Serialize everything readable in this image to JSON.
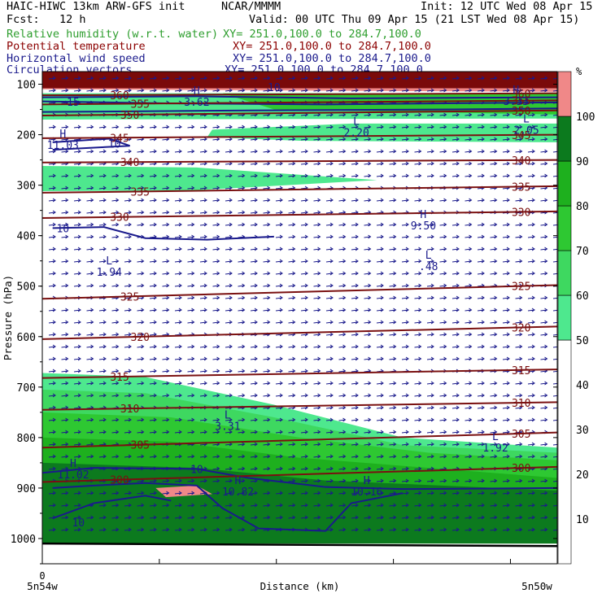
{
  "header": {
    "model": "HAIC-HIWC 13km ARW-GFS init",
    "org": "NCAR/MMMM",
    "init": "Init: 12 UTC Wed 08 Apr 15",
    "fcst": "Fcst:   12 h",
    "valid": "Valid: 00 UTC Thu 09 Apr 15 (21 LST Wed 08 Apr 15)",
    "fields": [
      {
        "name": "Relative humidity (w.r.t. water)",
        "xy": "XY= 251.0,100.0 to 284.7,100.0",
        "color": "#2e9e2e"
      },
      {
        "name": "Potential temperature",
        "xy": "XY= 251.0,100.0 to 284.7,100.0",
        "color": "#8b0000"
      },
      {
        "name": "Horizontal wind speed",
        "xy": "XY= 251.0,100.0 to 284.7,100.0",
        "color": "#1a1a8c"
      },
      {
        "name": "Circulation vectors",
        "xy": "XY= 251.0,100.0 to 284.7,100.0",
        "color": "#1a1a8c"
      }
    ]
  },
  "chart_data": {
    "type": "heatmap",
    "title": "",
    "xlabel": "Distance (km)",
    "ylabel": "Pressure (hPa)",
    "x_start_label": "5n54w",
    "x_end_label": "5n50w",
    "x_zero_label": "0",
    "y_ticks": [
      100,
      200,
      300,
      400,
      500,
      600,
      700,
      800,
      900,
      1000
    ],
    "ylim": [
      1050,
      75
    ],
    "colorbar": {
      "unit": "%",
      "ticks": [
        10,
        20,
        30,
        40,
        50,
        60,
        70,
        80,
        90,
        100
      ],
      "levels": [
        {
          "from": 0,
          "to": 50,
          "color": "#ffffff"
        },
        {
          "from": 50,
          "to": 60,
          "color": "#4ee88e"
        },
        {
          "from": 60,
          "to": 70,
          "color": "#3ed860"
        },
        {
          "from": 70,
          "to": 80,
          "color": "#2ec832"
        },
        {
          "from": 80,
          "to": 90,
          "color": "#1eb01e"
        },
        {
          "from": 90,
          "to": 100,
          "color": "#0c7a1e"
        },
        {
          "from": 100,
          "to": 110,
          "color": "#f08888"
        }
      ]
    },
    "theta_contours": [
      {
        "label": "345",
        "p_left": 207,
        "p_right": 200
      },
      {
        "label": "340",
        "p_left": 255,
        "p_right": 250
      },
      {
        "label": "335",
        "p_left": 315,
        "p_right": 302
      },
      {
        "label": "330",
        "p_left": 365,
        "p_right": 352
      },
      {
        "label": "325",
        "p_left": 525,
        "p_right": 498
      },
      {
        "label": "320",
        "p_left": 605,
        "p_right": 580
      },
      {
        "label": "315",
        "p_left": 682,
        "p_right": 665
      },
      {
        "label": "310",
        "p_left": 745,
        "p_right": 730
      },
      {
        "label": "305",
        "p_left": 820,
        "p_right": 790
      },
      {
        "label": "300",
        "p_left": 888,
        "p_right": 858
      },
      {
        "label": "350",
        "p_left": 162,
        "p_right": 152
      },
      {
        "label": "355",
        "p_left": 140,
        "p_right": 132
      },
      {
        "label": "360",
        "p_left": 122,
        "p_right": 118
      }
    ],
    "wind_labels": [
      {
        "label": "15",
        "x": 0.06,
        "p": 135
      },
      {
        "label": "10",
        "x": 0.14,
        "p": 218
      },
      {
        "label": "10",
        "x": 0.04,
        "p": 385
      },
      {
        "label": "10",
        "x": 0.3,
        "p": 862
      },
      {
        "label": "10",
        "x": 0.07,
        "p": 968
      },
      {
        "label": "10",
        "x": 0.45,
        "p": 106
      }
    ],
    "extrema": [
      {
        "kind": "H",
        "value": "11.03",
        "x": 0.04,
        "p": 215
      },
      {
        "kind": "L",
        "value": "2.20",
        "x": 0.61,
        "p": 190
      },
      {
        "kind": "L",
        "value": "2.05",
        "x": 0.94,
        "p": 185
      },
      {
        "kind": "H",
        "value": "9.50",
        "x": 0.74,
        "p": 375
      },
      {
        "kind": "L",
        "value": ".48",
        "x": 0.75,
        "p": 455
      },
      {
        "kind": "L",
        "value": "1.94",
        "x": 0.13,
        "p": 467
      },
      {
        "kind": "L",
        "value": "3.31",
        "x": 0.36,
        "p": 772
      },
      {
        "kind": "L",
        "value": "1.92",
        "x": 0.88,
        "p": 815
      },
      {
        "kind": "H",
        "value": "11.02",
        "x": 0.06,
        "p": 868
      },
      {
        "kind": "H",
        "value": "10.82",
        "x": 0.38,
        "p": 902
      },
      {
        "kind": "H",
        "value": "10.16",
        "x": 0.63,
        "p": 902
      },
      {
        "kind": "H",
        "value": "3.62",
        "x": 0.3,
        "p": 130
      },
      {
        "kind": "H",
        "value": "3.33",
        "x": 0.92,
        "p": 128
      }
    ]
  }
}
